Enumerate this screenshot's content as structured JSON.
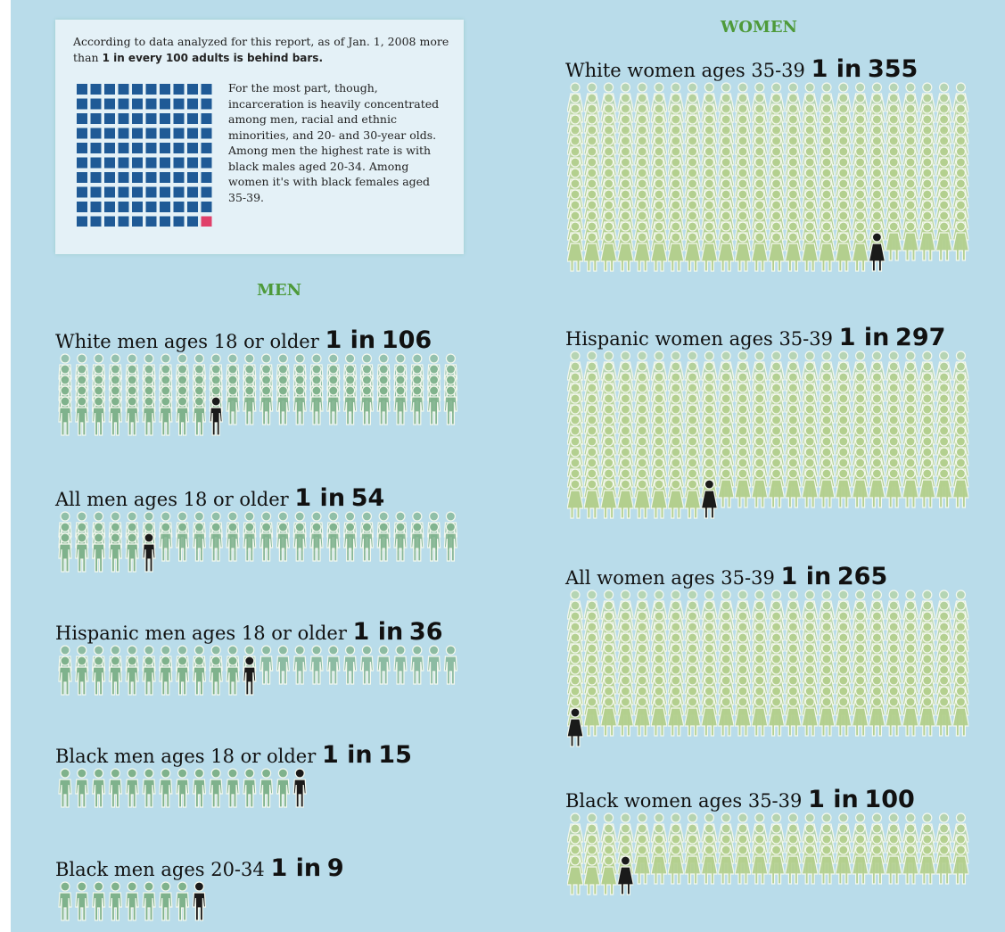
{
  "intro": {
    "lead": "According to data analyzed for this report, as of Jan. 1, 2008 more than",
    "lead_bold": "1 in every 100 adults is behind bars.",
    "body": "For the most part, though, incarceration is heavily concentrated among men, racial and ethnic minorities, and 20- and 30-year olds. Among men the highest rate is with black males aged 20-34. Among women it's with black females aged 35-39."
  },
  "colors": {
    "men": "#7fb28c",
    "women": "#b3cf8e",
    "highlight": "#1a1a1a",
    "grid": "#1f5a96",
    "grid_highlight": "#e0406a",
    "heading": "#4e9a3a"
  },
  "men": {
    "heading": "MEN",
    "groups": [
      {
        "label": "White men ages 18 or older",
        "ratio": "1 in",
        "value": 106
      },
      {
        "label": "All men ages 18 or older",
        "ratio": "1 in",
        "value": 54
      },
      {
        "label": "Hispanic men ages 18 or older",
        "ratio": "1 in",
        "value": 36
      },
      {
        "label": "Black men ages 18 or older",
        "ratio": "1 in",
        "value": 15
      },
      {
        "label": "Black men ages 20-34",
        "ratio": "1 in",
        "value": 9
      }
    ]
  },
  "women": {
    "heading": "WOMEN",
    "groups": [
      {
        "label": "White women ages 35-39",
        "ratio": "1 in",
        "value": 355
      },
      {
        "label": "Hispanic women ages 35-39",
        "ratio": "1 in",
        "value": 297
      },
      {
        "label": "All women ages 35-39",
        "ratio": "1 in",
        "value": 265
      },
      {
        "label": "Black women ages 35-39",
        "ratio": "1 in",
        "value": 100
      }
    ]
  }
}
